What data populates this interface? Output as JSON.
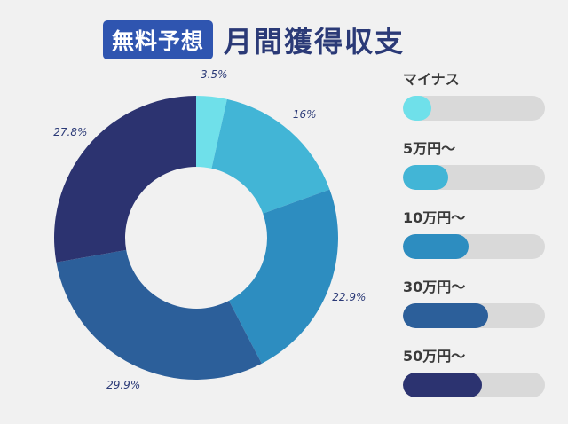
{
  "header": {
    "badge": "無料予想",
    "title": "月間獲得収支"
  },
  "chart_data": {
    "type": "pie",
    "donut": true,
    "title": "",
    "slices": [
      {
        "name": "マイナス",
        "value": 3.5,
        "label": "3.5%",
        "color": "#6fe0ea"
      },
      {
        "name": "5万円〜",
        "value": 16,
        "label": "16%",
        "color": "#42b5d6"
      },
      {
        "name": "10万円〜",
        "value": 22.9,
        "label": "22.9%",
        "color": "#2d8dc0"
      },
      {
        "name": "30万円〜",
        "value": 29.9,
        "label": "29.9%",
        "color": "#2c5f9a"
      },
      {
        "name": "50万円〜",
        "value": 27.8,
        "label": "27.8%",
        "color": "#2c3370"
      }
    ],
    "legend_position": "right"
  }
}
